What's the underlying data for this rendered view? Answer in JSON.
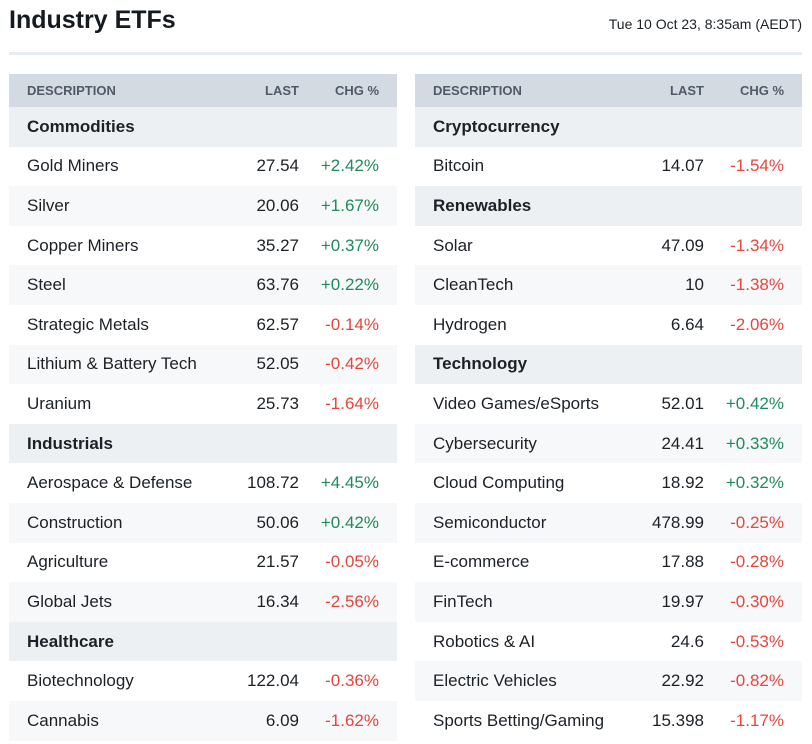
{
  "header": {
    "title": "Industry ETFs",
    "timestamp": "Tue 10 Oct 23, 8:35am (AEDT)"
  },
  "columns": {
    "description": "DESCRIPTION",
    "last": "LAST",
    "chg": "CHG %"
  },
  "colors": {
    "up": "#1f8a5b",
    "down": "#e5463b",
    "header_bg": "#d3dae2",
    "group_bg": "#edf0f3"
  },
  "left": [
    {
      "group": "Commodities",
      "items": [
        {
          "name": "Gold Miners",
          "last": "27.54",
          "chg": "+2.42%"
        },
        {
          "name": "Silver",
          "last": "20.06",
          "chg": "+1.67%"
        },
        {
          "name": "Copper Miners",
          "last": "35.27",
          "chg": "+0.37%"
        },
        {
          "name": "Steel",
          "last": "63.76",
          "chg": "+0.22%"
        },
        {
          "name": "Strategic Metals",
          "last": "62.57",
          "chg": "-0.14%"
        },
        {
          "name": "Lithium & Battery Tech",
          "last": "52.05",
          "chg": "-0.42%"
        },
        {
          "name": "Uranium",
          "last": "25.73",
          "chg": "-1.64%"
        }
      ]
    },
    {
      "group": "Industrials",
      "items": [
        {
          "name": "Aerospace & Defense",
          "last": "108.72",
          "chg": "+4.45%"
        },
        {
          "name": "Construction",
          "last": "50.06",
          "chg": "+0.42%"
        },
        {
          "name": "Agriculture",
          "last": "21.57",
          "chg": "-0.05%"
        },
        {
          "name": "Global Jets",
          "last": "16.34",
          "chg": "-2.56%"
        }
      ]
    },
    {
      "group": "Healthcare",
      "items": [
        {
          "name": "Biotechnology",
          "last": "122.04",
          "chg": "-0.36%"
        },
        {
          "name": "Cannabis",
          "last": "6.09",
          "chg": "-1.62%"
        }
      ]
    }
  ],
  "right": [
    {
      "group": "Cryptocurrency",
      "items": [
        {
          "name": "Bitcoin",
          "last": "14.07",
          "chg": "-1.54%"
        }
      ]
    },
    {
      "group": "Renewables",
      "items": [
        {
          "name": "Solar",
          "last": "47.09",
          "chg": "-1.34%"
        },
        {
          "name": "CleanTech",
          "last": "10",
          "chg": "-1.38%"
        },
        {
          "name": "Hydrogen",
          "last": "6.64",
          "chg": "-2.06%"
        }
      ]
    },
    {
      "group": "Technology",
      "items": [
        {
          "name": "Video Games/eSports",
          "last": "52.01",
          "chg": "+0.42%"
        },
        {
          "name": "Cybersecurity",
          "last": "24.41",
          "chg": "+0.33%"
        },
        {
          "name": "Cloud Computing",
          "last": "18.92",
          "chg": "+0.32%"
        },
        {
          "name": "Semiconductor",
          "last": "478.99",
          "chg": "-0.25%"
        },
        {
          "name": "E-commerce",
          "last": "17.88",
          "chg": "-0.28%"
        },
        {
          "name": "FinTech",
          "last": "19.97",
          "chg": "-0.30%"
        },
        {
          "name": "Robotics & AI",
          "last": "24.6",
          "chg": "-0.53%"
        },
        {
          "name": "Electric Vehicles",
          "last": "22.92",
          "chg": "-0.82%"
        },
        {
          "name": "Sports Betting/Gaming",
          "last": "15.398",
          "chg": "-1.17%"
        }
      ]
    }
  ]
}
